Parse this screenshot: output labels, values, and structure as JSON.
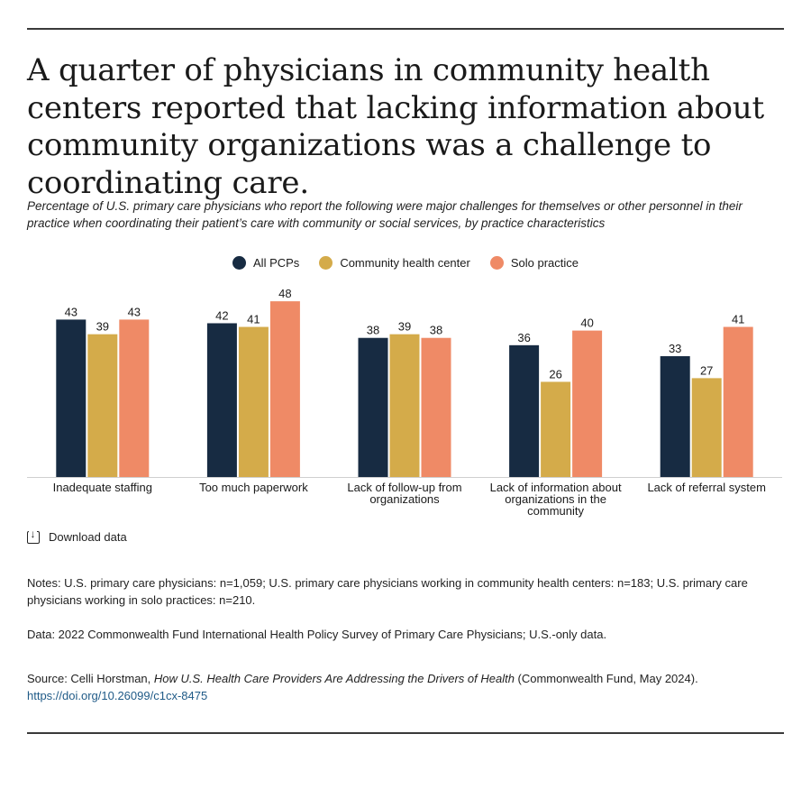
{
  "title": "A quarter of physicians in community health centers reported that lacking information about community organizations was a challenge to coordinating care.",
  "subtitle": "Percentage of U.S. primary care physicians who report the following were major challenges for themselves or other personnel in their practice when coordinating their patient’s care with community or social services, by practice characteristics",
  "download_label": "Download data",
  "notes": "Notes: U.S. primary care physicians: n=1,059; U.S. primary care physicians working in community health centers: n=183; U.S. primary care physicians working in solo practices: n=210.",
  "data_note": "Data: 2022 Commonwealth Fund International Health Policy Survey of Primary Care Physicians; U.S.-only data.",
  "source": {
    "prefix": "Source: Celli Horstman, ",
    "title": "How U.S. Health Care Providers Are Addressing the Drivers of Health",
    "suffix": " (Commonwealth Fund, May 2024). ",
    "link": "https://doi.org/10.26099/c1cx-8475"
  },
  "chart_data": {
    "type": "bar",
    "categories": [
      [
        "Inadequate staffing"
      ],
      [
        "Too much paperwork"
      ],
      [
        "Lack of follow-up from",
        "organizations"
      ],
      [
        "Lack of information about",
        "organizations in the",
        "community"
      ],
      [
        "Lack of referral system"
      ]
    ],
    "series": [
      {
        "name": "All PCPs",
        "color": "#172b42",
        "values": [
          43,
          42,
          38,
          36,
          33
        ]
      },
      {
        "name": "Community health center",
        "color": "#d4ab4a",
        "values": [
          39,
          41,
          39,
          26,
          27
        ]
      },
      {
        "name": "Solo practice",
        "color": "#ef8a66",
        "values": [
          43,
          48,
          38,
          40,
          41
        ]
      }
    ],
    "ylim": [
      0,
      48
    ],
    "xlabel": "",
    "ylabel": "",
    "legend_position": "top-center",
    "grid": false
  }
}
